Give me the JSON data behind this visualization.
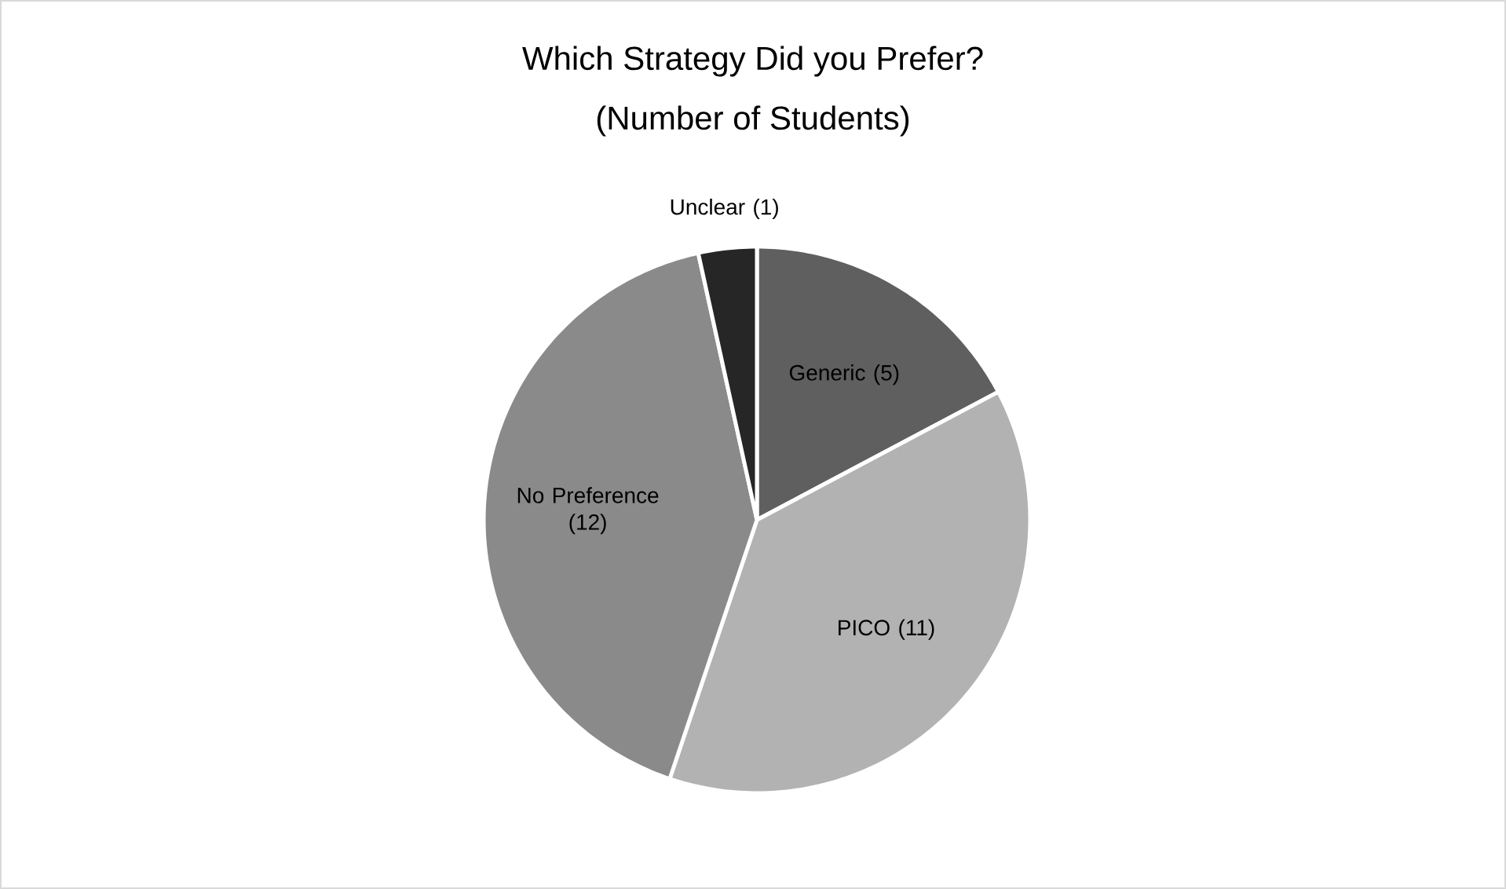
{
  "chart_data": {
    "type": "pie",
    "title": "Which Strategy Did you Prefer?",
    "subtitle": "(Number of Students)",
    "categories": [
      "Generic",
      "PICO",
      "No Preference",
      "Unclear"
    ],
    "values": [
      5,
      11,
      12,
      1
    ],
    "value_labels": [
      "(5)",
      "(11)",
      "(12)",
      "(1)"
    ],
    "colors": [
      "#5f5f5f",
      "#b2b2b2",
      "#8a8a8a",
      "#262626"
    ]
  }
}
